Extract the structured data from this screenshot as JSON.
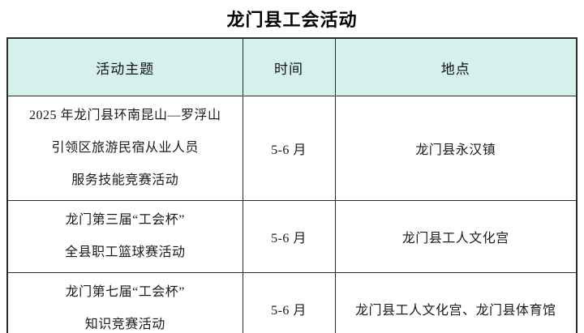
{
  "title": "龙门县工会活动",
  "table": {
    "headers": [
      "活动主题",
      "时间",
      "地点"
    ],
    "rows": [
      {
        "theme_lines": [
          "2025 年龙门县环南昆山—罗浮山",
          "引领区旅游民宿从业人员",
          "服务技能竞赛活动"
        ],
        "time": "5-6 月",
        "location": "龙门县永汉镇"
      },
      {
        "theme_lines": [
          "龙门第三届“工会杯”",
          "全县职工篮球赛活动"
        ],
        "time": "5-6 月",
        "location": "龙门县工人文化宫"
      },
      {
        "theme_lines": [
          "龙门第七届“工会杯”",
          "知识竞赛活动"
        ],
        "time": "5-6 月",
        "location": "龙门县工人文化宫、龙门县体育馆"
      }
    ]
  },
  "colors": {
    "header_bg": "#d6f0ee",
    "border": "#2b2b2b",
    "text": "#1a1a1a"
  }
}
